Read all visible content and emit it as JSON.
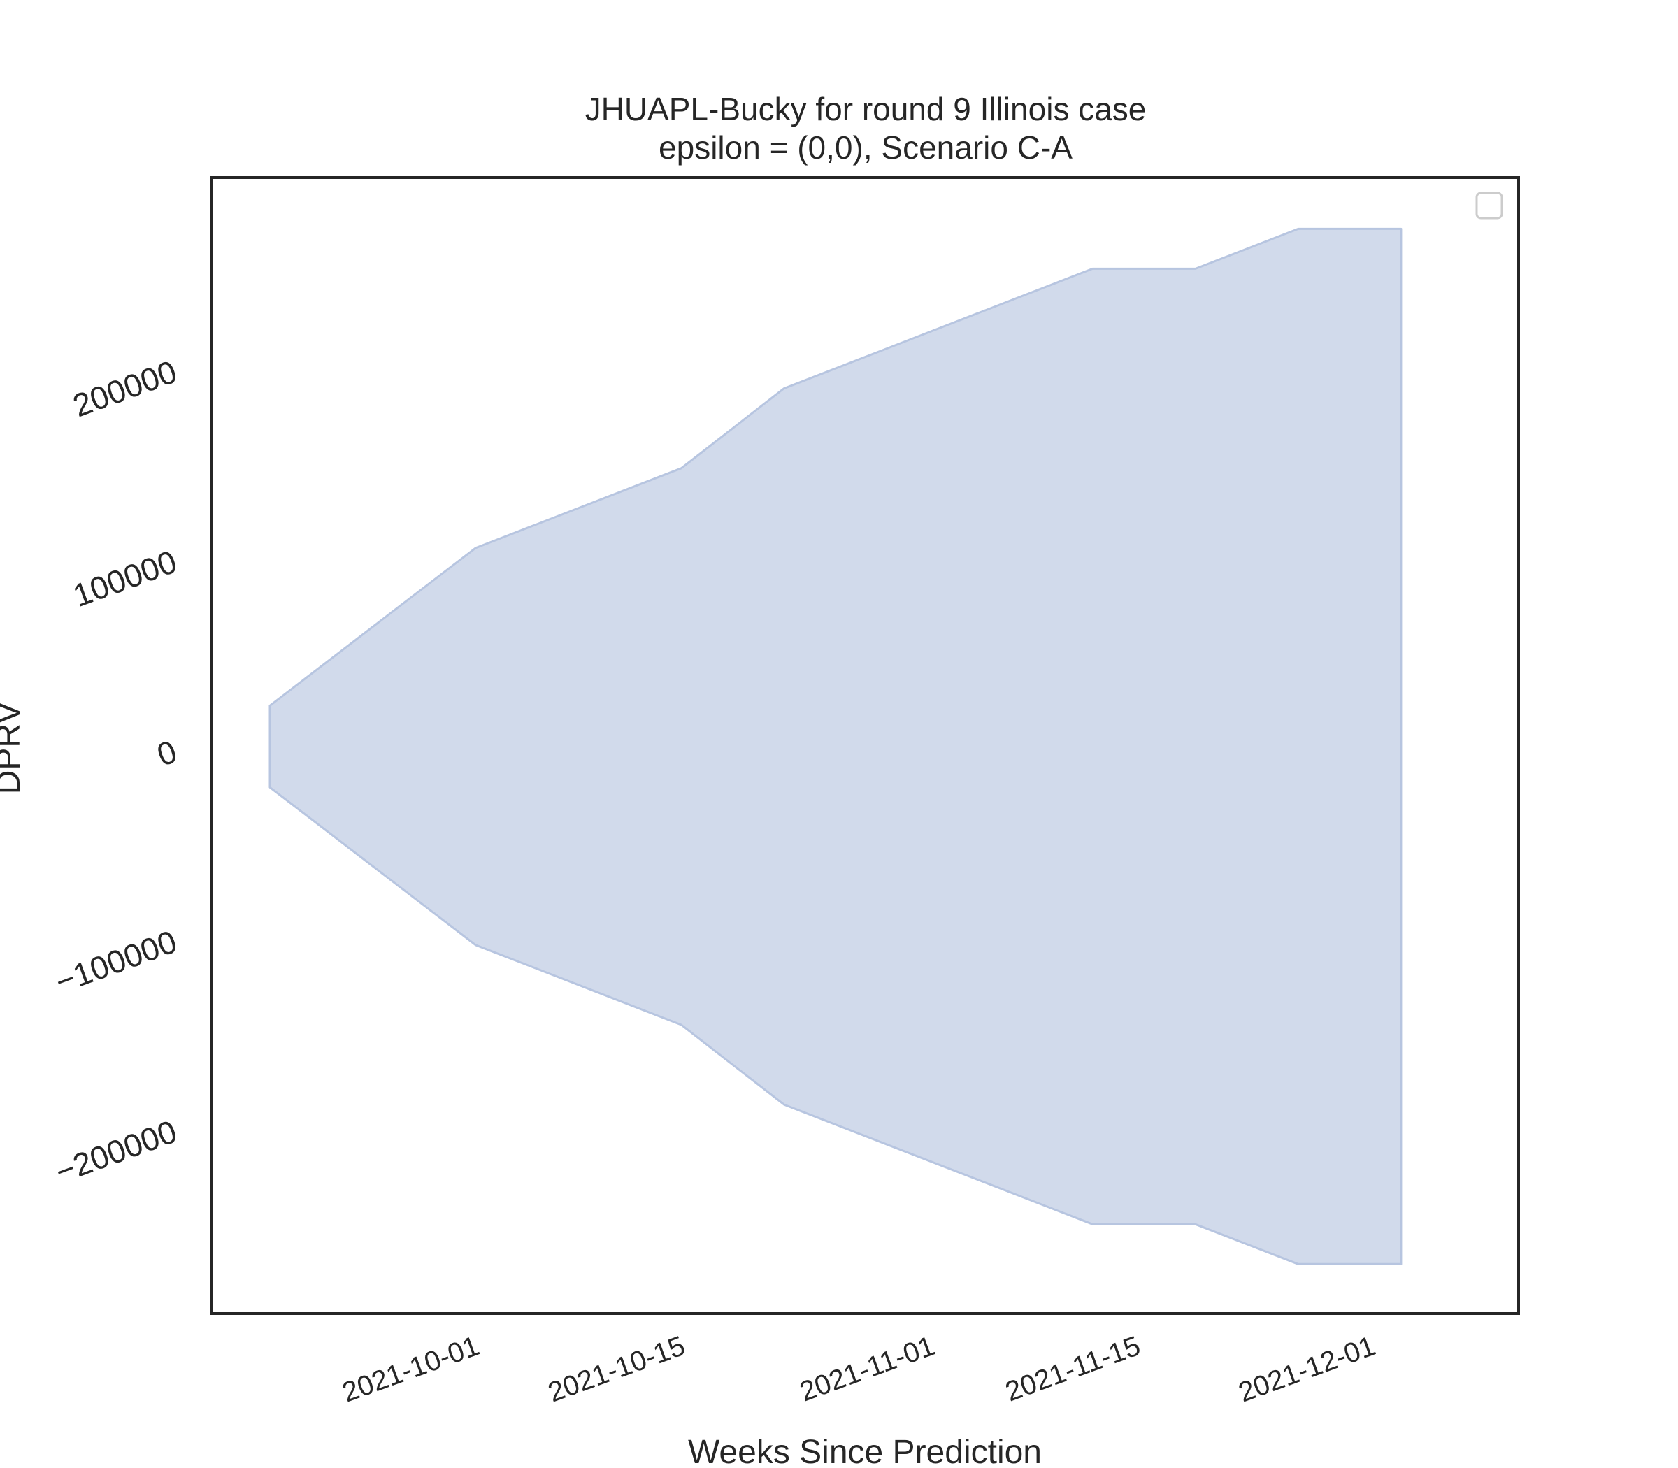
{
  "chart_data": {
    "type": "area",
    "title_line1": "JHUAPL-Bucky for round 9 Illinois case",
    "title_line2": "epsilon = (0,0), Scenario C-A",
    "xlabel": "Weeks Since Prediction",
    "ylabel": "DPRV",
    "x_tick_labels": [
      "2021-10-01",
      "2021-10-15",
      "2021-11-01",
      "2021-11-15",
      "2021-12-01"
    ],
    "x_ticks": [
      "2021-10-01",
      "2021-10-15",
      "2021-11-01",
      "2021-11-15",
      "2021-12-01"
    ],
    "y_tick_labels": [
      "200000",
      "100000",
      "0",
      "−100000",
      "−200000"
    ],
    "y_ticks": [
      200000,
      100000,
      0,
      -100000,
      -200000
    ],
    "xlim": [
      "2021-09-13",
      "2021-12-11"
    ],
    "ylim": [
      -297000,
      301000
    ],
    "grid": false,
    "legend": "top-right (empty)",
    "colors": {
      "band_fill": "#d1daeb",
      "band_edge": "#b7c5e0",
      "axis": "#262626"
    },
    "series": [
      {
        "x": [
          "2021-09-17",
          "2021-10-01",
          "2021-10-15",
          "2021-10-22",
          "2021-11-12",
          "2021-11-19",
          "2021-11-26",
          "2021-12-03"
        ],
        "upper": [
          23000,
          106000,
          148000,
          190000,
          253000,
          253000,
          274000,
          274000
        ],
        "lower": [
          -20000,
          -103000,
          -145000,
          -187000,
          -250000,
          -250000,
          -271000,
          -271000
        ]
      }
    ]
  }
}
